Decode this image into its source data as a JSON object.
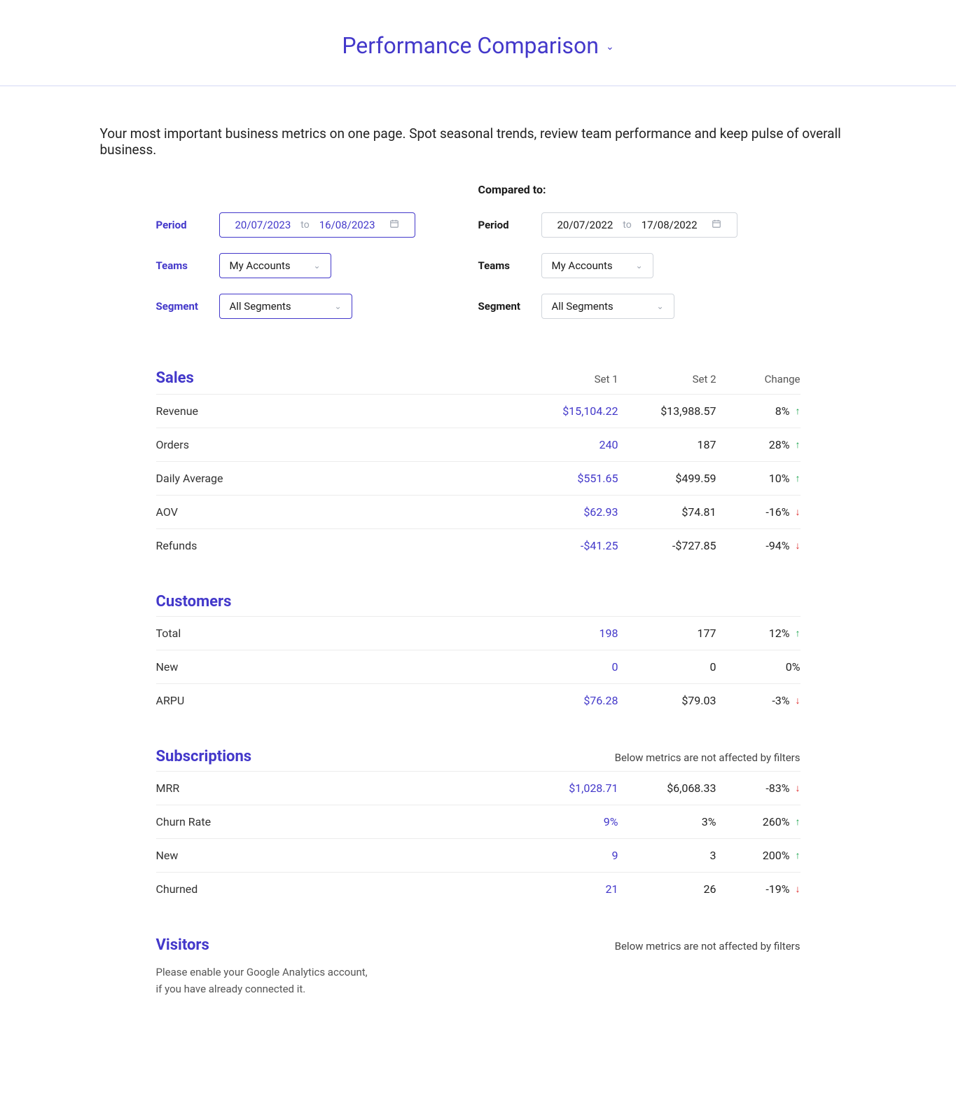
{
  "colors": {
    "accent": "#4338ca",
    "text": "#1a1a1a",
    "muted": "#9ca3af",
    "border": "#d1d5db",
    "row_border": "#ececec",
    "up": "#16a34a",
    "down": "#dc2626",
    "title_border": "#d6d9f5",
    "background": "#ffffff"
  },
  "header": {
    "title": "Performance Comparison"
  },
  "intro": "Your most important business metrics on one page. Spot seasonal trends, review team performance and keep pulse of overall business.",
  "filters": {
    "compared_label": "Compared to:",
    "left": {
      "period_label": "Period",
      "period_from": "20/07/2023",
      "period_to_word": "to",
      "period_to": "16/08/2023",
      "teams_label": "Teams",
      "teams_value": "My Accounts",
      "segment_label": "Segment",
      "segment_value": "All Segments"
    },
    "right": {
      "period_label": "Period",
      "period_from": "20/07/2022",
      "period_to_word": "to",
      "period_to": "17/08/2022",
      "teams_label": "Teams",
      "teams_value": "My Accounts",
      "segment_label": "Segment",
      "segment_value": "All Segments"
    }
  },
  "columns": {
    "set1": "Set 1",
    "set2": "Set 2",
    "change": "Change"
  },
  "sections": {
    "sales": {
      "title": "Sales",
      "rows": [
        {
          "label": "Revenue",
          "set1": "$15,104.22",
          "set2": "$13,988.57",
          "change": "8%",
          "dir": "up"
        },
        {
          "label": "Orders",
          "set1": "240",
          "set2": "187",
          "change": "28%",
          "dir": "up"
        },
        {
          "label": "Daily Average",
          "set1": "$551.65",
          "set2": "$499.59",
          "change": "10%",
          "dir": "up"
        },
        {
          "label": "AOV",
          "set1": "$62.93",
          "set2": "$74.81",
          "change": "-16%",
          "dir": "down"
        },
        {
          "label": "Refunds",
          "set1": "-$41.25",
          "set2": "-$727.85",
          "change": "-94%",
          "dir": "down"
        }
      ]
    },
    "customers": {
      "title": "Customers",
      "rows": [
        {
          "label": "Total",
          "set1": "198",
          "set2": "177",
          "change": "12%",
          "dir": "up"
        },
        {
          "label": "New",
          "set1": "0",
          "set2": "0",
          "change": "0%",
          "dir": "none"
        },
        {
          "label": "ARPU",
          "set1": "$76.28",
          "set2": "$79.03",
          "change": "-3%",
          "dir": "down"
        }
      ]
    },
    "subscriptions": {
      "title": "Subscriptions",
      "note": "Below metrics are not affected by filters",
      "rows": [
        {
          "label": "MRR",
          "set1": "$1,028.71",
          "set2": "$6,068.33",
          "change": "-83%",
          "dir": "down"
        },
        {
          "label": "Churn Rate",
          "set1": "9%",
          "set2": "3%",
          "change": "260%",
          "dir": "up"
        },
        {
          "label": "New",
          "set1": "9",
          "set2": "3",
          "change": "200%",
          "dir": "up"
        },
        {
          "label": "Churned",
          "set1": "21",
          "set2": "26",
          "change": "-19%",
          "dir": "down"
        }
      ]
    },
    "visitors": {
      "title": "Visitors",
      "note": "Below metrics are not affected by filters",
      "empty_line1": "Please enable your Google Analytics account,",
      "empty_line2": "if you have already connected it."
    }
  }
}
